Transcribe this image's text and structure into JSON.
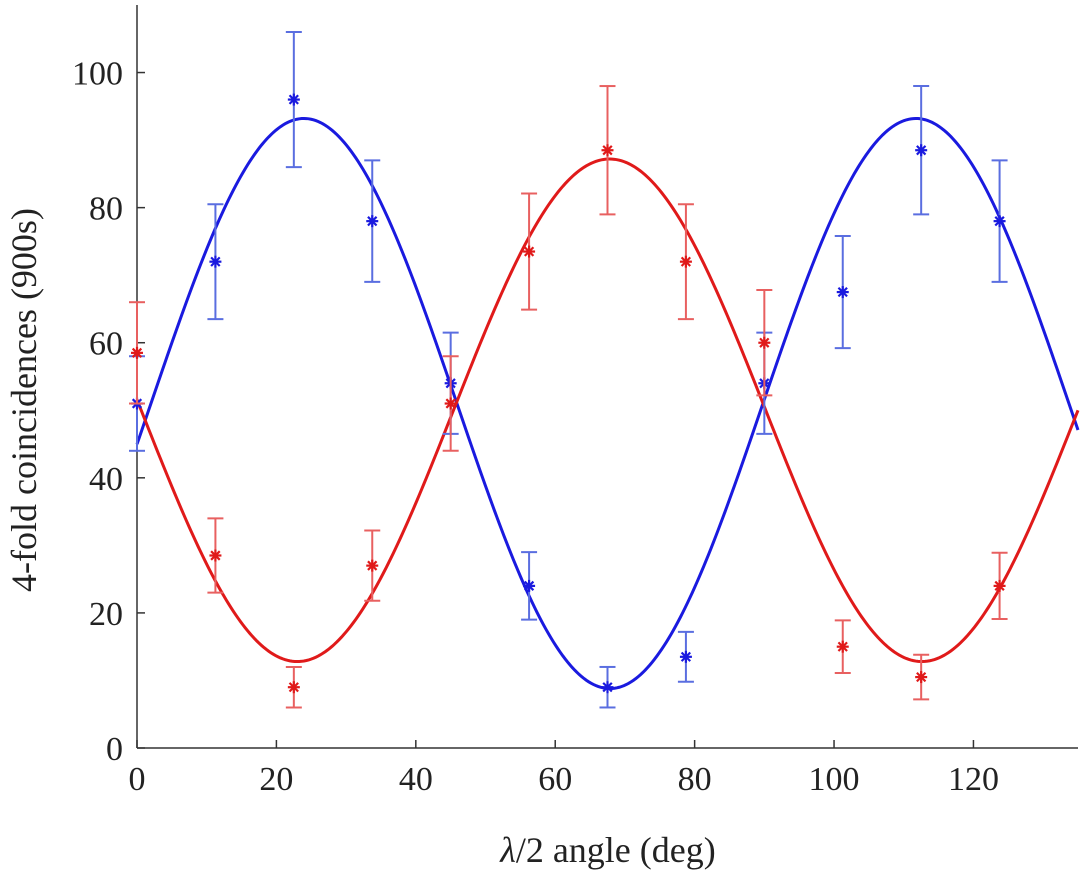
{
  "chart_data": {
    "type": "scatter",
    "xlabel_prefix": "λ",
    "xlabel_rest": "/2 angle (deg)",
    "ylabel": "4-fold coincidences (900s)",
    "xlim": [
      0,
      135
    ],
    "ylim": [
      0,
      110
    ],
    "xticks": [
      0,
      20,
      40,
      60,
      80,
      100,
      120
    ],
    "yticks": [
      0,
      20,
      40,
      60,
      80,
      100
    ],
    "grid": false,
    "colors": {
      "blue": "#1a1adf",
      "red": "#e01a1a",
      "blue_errbar": "#5a6ee0",
      "red_errbar": "#e86060"
    },
    "series": [
      {
        "color_key": "blue",
        "points": [
          {
            "x": 0,
            "y": 51,
            "err": 7
          },
          {
            "x": 11.25,
            "y": 72,
            "err": 8.5
          },
          {
            "x": 22.5,
            "y": 96,
            "err": 10
          },
          {
            "x": 33.75,
            "y": 78,
            "err": 9
          },
          {
            "x": 45,
            "y": 54,
            "err": 7.5
          },
          {
            "x": 56.25,
            "y": 24,
            "err": 5
          },
          {
            "x": 67.5,
            "y": 9,
            "err": 3
          },
          {
            "x": 78.75,
            "y": 13.5,
            "err": 3.7
          },
          {
            "x": 90,
            "y": 54,
            "err": 7.5
          },
          {
            "x": 101.25,
            "y": 67.5,
            "err": 8.3
          },
          {
            "x": 112.5,
            "y": 88.5,
            "err": 9.5
          },
          {
            "x": 123.75,
            "y": 78,
            "err": 9
          }
        ],
        "fit": {
          "offset": 51,
          "amplitude": 42.2,
          "period": 87.8,
          "phase": 2.0
        }
      },
      {
        "color_key": "red",
        "points": [
          {
            "x": 0,
            "y": 58.5,
            "err": 7.5
          },
          {
            "x": 11.25,
            "y": 28.5,
            "err": 5.5
          },
          {
            "x": 22.5,
            "y": 9,
            "err": 3
          },
          {
            "x": 33.75,
            "y": 27,
            "err": 5.2
          },
          {
            "x": 45,
            "y": 51,
            "err": 7
          },
          {
            "x": 56.25,
            "y": 73.5,
            "err": 8.6
          },
          {
            "x": 67.5,
            "y": 88.5,
            "err": 9.5
          },
          {
            "x": 78.75,
            "y": 72,
            "err": 8.5
          },
          {
            "x": 90,
            "y": 60,
            "err": 7.8
          },
          {
            "x": 101.25,
            "y": 15,
            "err": 3.9
          },
          {
            "x": 112.5,
            "y": 10.5,
            "err": 3.3
          },
          {
            "x": 123.75,
            "y": 24,
            "err": 4.9
          }
        ],
        "fit": {
          "offset": 50,
          "amplitude": -37.2,
          "period": 89.6,
          "phase": 0.6
        }
      }
    ]
  }
}
